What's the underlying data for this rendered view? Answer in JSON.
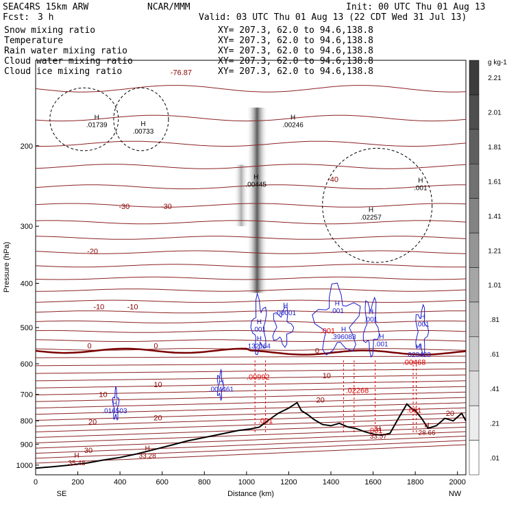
{
  "header": {
    "model": "SEAC4RS 15km ARW",
    "org": "NCAR/MMM",
    "init": "Init: 00 UTC Thu 01 Aug 13",
    "fcst_label": "Fcst:",
    "fcst_value": "3 h",
    "valid": "Valid: 03 UTC Thu 01 Aug 13 (22 CDT Wed 31 Jul 13)"
  },
  "legend": [
    {
      "name": "Snow mixing ratio",
      "xy": "XY= 207.3, 62.0 to  94.6,138.8",
      "color": "#000000"
    },
    {
      "name": "Temperature",
      "xy": "XY= 207.3, 62.0 to  94.6,138.8",
      "color": "#c00000"
    },
    {
      "name": "Rain water mixing ratio",
      "xy": "XY= 207.3, 62.0 to  94.6,138.8",
      "color": "#e00000"
    },
    {
      "name": "Cloud water mixing ratio",
      "xy": "XY= 207.3, 62.0 to  94.6,138.8",
      "color": "#0000cc"
    },
    {
      "name": "Cloud ice mixing ratio",
      "xy": "XY= 207.3, 62.0 to  94.6,138.8",
      "color": "#000000"
    }
  ],
  "chart_data": {
    "type": "cross-section contour",
    "xlabel": "Distance (km)",
    "ylabel": "Pressure (hPa)",
    "x_ticks": [
      0,
      200,
      400,
      600,
      800,
      1000,
      1200,
      1400,
      1600,
      1800,
      2000
    ],
    "y_ticks": [
      200,
      300,
      400,
      500,
      600,
      700,
      800,
      900,
      1000
    ],
    "xlim": [
      0,
      2040
    ],
    "ylim": [
      1050,
      130
    ],
    "y_scale": "log",
    "x_end_labels": {
      "left": "SE",
      "right": "NW"
    },
    "colorbar": {
      "unit": "g kg-1",
      "labels": [
        "2.21",
        "2.01",
        "1.81",
        "1.61",
        "1.41",
        "1.21",
        "1.01",
        ".81",
        ".61",
        ".41",
        ".21",
        ".01"
      ]
    },
    "temperature_contours": {
      "color": "#8b0000",
      "labels": [
        {
          "text": "-76.87",
          "x": 690,
          "p": 140
        },
        {
          "text": "-40",
          "x": 1410,
          "p": 240
        },
        {
          "text": "-30",
          "x": 420,
          "p": 275
        },
        {
          "text": "-30",
          "x": 620,
          "p": 275
        },
        {
          "text": "-20",
          "x": 270,
          "p": 345
        },
        {
          "text": "-10",
          "x": 300,
          "p": 456
        },
        {
          "text": "-10",
          "x": 460,
          "p": 456
        },
        {
          "text": "0",
          "x": 255,
          "p": 555
        },
        {
          "text": "0",
          "x": 570,
          "p": 555
        },
        {
          "text": "0",
          "x": 1335,
          "p": 569
        },
        {
          "text": "10",
          "x": 320,
          "p": 710
        },
        {
          "text": "10",
          "x": 1380,
          "p": 645
        },
        {
          "text": "10",
          "x": 580,
          "p": 675
        },
        {
          "text": "20",
          "x": 270,
          "p": 814
        },
        {
          "text": "20",
          "x": 580,
          "p": 798
        },
        {
          "text": "20",
          "x": 1350,
          "p": 730
        },
        {
          "text": "20",
          "x": 1965,
          "p": 780
        },
        {
          "text": "30",
          "x": 250,
          "p": 940
        }
      ],
      "maxima": [
        {
          "text": "33.28",
          "x": 530,
          "p": 965
        },
        {
          "text": "35.48",
          "x": 195,
          "p": 1000
        },
        {
          "text": "33.57",
          "x": 1625,
          "p": 875
        },
        {
          "text": "28.66",
          "x": 1855,
          "p": 860
        }
      ]
    },
    "snow_maxima": [
      {
        "text": ".01739",
        "x": 290,
        "p": 182
      },
      {
        "text": ".00733",
        "x": 510,
        "p": 188
      },
      {
        "text": ".00246",
        "x": 1220,
        "p": 182
      },
      {
        "text": ".00445",
        "x": 1045,
        "p": 246
      },
      {
        "text": ".02257",
        "x": 1590,
        "p": 290
      },
      {
        "text": ".001",
        "x": 1825,
        "p": 250
      }
    ],
    "cloud_water_maxima": [
      {
        "text": "132164",
        "x": 1060,
        "p": 555
      },
      {
        "text": ".001",
        "x": 1060,
        "p": 510
      },
      {
        "text": ".001",
        "x": 1430,
        "p": 465
      },
      {
        "text": ".00001",
        "x": 1185,
        "p": 470
      },
      {
        "text": ".396083",
        "x": 1460,
        "p": 530
      },
      {
        "text": ".001",
        "x": 1590,
        "p": 485
      },
      {
        "text": ".001",
        "x": 1640,
        "p": 550
      },
      {
        "text": ".001",
        "x": 1835,
        "p": 497
      },
      {
        "text": ".023423",
        "x": 1815,
        "p": 580
      },
      {
        "text": ".004461",
        "x": 880,
        "p": 690
      },
      {
        "text": ".016503",
        "x": 375,
        "p": 770
      }
    ],
    "rain_maxima": [
      {
        "text": ".00992",
        "x": 1055,
        "p": 650
      },
      {
        "text": ".001",
        "x": 1385,
        "p": 515
      },
      {
        "text": ".02268",
        "x": 1525,
        "p": 695
      },
      {
        "text": ".00468",
        "x": 1795,
        "p": 603
      },
      {
        "text": ".001",
        "x": 1090,
        "p": 810
      },
      {
        "text": ".001",
        "x": 1610,
        "p": 850
      },
      {
        "text": ".001",
        "x": 1795,
        "p": 768
      }
    ],
    "terrain_surface": {
      "x": [
        0,
        80,
        160,
        240,
        320,
        400,
        480,
        560,
        640,
        720,
        800,
        880,
        960,
        1020,
        1060,
        1100,
        1150,
        1200,
        1240,
        1260,
        1290,
        1320,
        1360,
        1400,
        1440,
        1480,
        1520,
        1560,
        1600,
        1640,
        1680,
        1720,
        1760,
        1780,
        1800,
        1830,
        1860,
        1900,
        1940,
        1980,
        2020,
        2040
      ],
      "p": [
        1015,
        1008,
        1000,
        990,
        975,
        962,
        945,
        925,
        905,
        885,
        870,
        855,
        840,
        833,
        826,
        800,
        770,
        750,
        730,
        760,
        775,
        795,
        815,
        820,
        810,
        825,
        832,
        845,
        855,
        860,
        852,
        790,
        735,
        750,
        760,
        790,
        830,
        820,
        790,
        800,
        770,
        800
      ]
    }
  }
}
